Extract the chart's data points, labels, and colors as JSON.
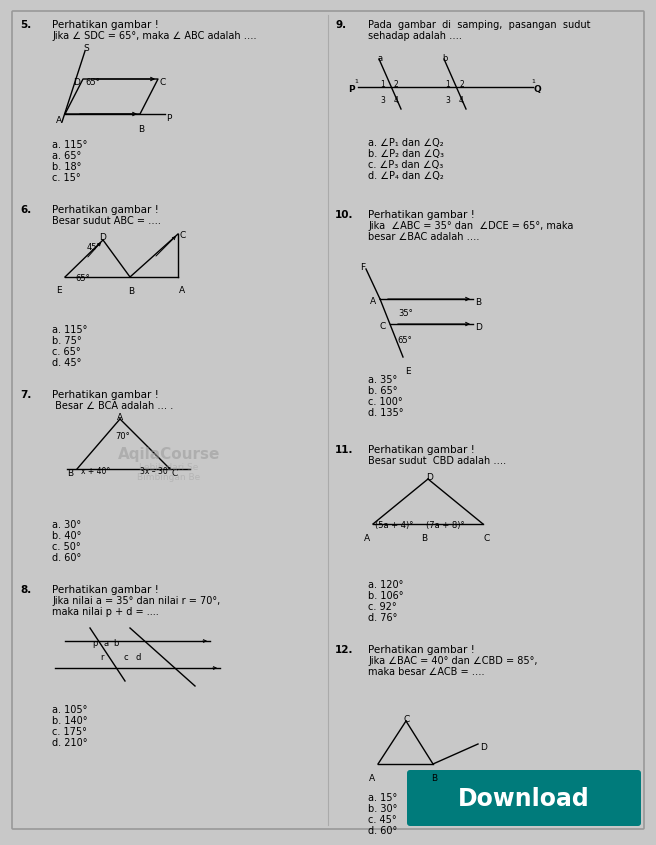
{
  "bg_color": "#c8c8c8",
  "q5_title": "Perhatikan gambar !",
  "q5_body": "Jika ∠ SDC = 65°, maka ∠ ABC adalah ….",
  "q5_ans": [
    "a. 115°",
    "a. 65°",
    "b. 18°",
    "c. 15°"
  ],
  "q6_title": "Perhatikan gambar !",
  "q6_body": "Besar sudut ABC = ….",
  "q6_ans": [
    "a. 115°",
    "b. 75°",
    "c. 65°",
    "d. 45°"
  ],
  "q7_title": "Perhatikan gambar !",
  "q7_body": " Besar ∠ BCA adalah … .",
  "q7_ans": [
    "a. 30°",
    "b. 40°",
    "c. 50°",
    "d. 60°"
  ],
  "q8_title": "Perhatikan gambar !",
  "q8_body1": "Jika nilai a = 35° dan nilai r = 70°,",
  "q8_body2": "maka nilai p + d = ....",
  "q8_ans": [
    "a. 105°",
    "b. 140°",
    "c. 175°",
    "d. 210°"
  ],
  "q9_title1": "Pada  gambar  di  samping,  pasangan  sudut",
  "q9_title2": "sehadap adalah ….",
  "q9_ans": [
    "a. ∠P₁ dan ∠Q₂",
    "b. ∠P₂ dan ∠Q₃",
    "c. ∠P₃ dan ∠Q₃",
    "d. ∠P₄ dan ∠Q₂"
  ],
  "q10_title": "Perhatikan gambar !",
  "q10_body1": "Jika  ∠ABC = 35° dan  ∠DCE = 65°, maka",
  "q10_body2": "besar ∠BAC adalah ….",
  "q10_ans": [
    "a. 35°",
    "b. 65°",
    "c. 100°",
    "d. 135°"
  ],
  "q11_title": "Perhatikan gambar !",
  "q11_body": "Besar sudut  CBD adalah ….",
  "q11_ans": [
    "a. 120°",
    "b. 106°",
    "c. 92°",
    "d. 76°"
  ],
  "q12_title": "Perhatikan gambar !",
  "q12_body1": "Jika ∠BAC = 40° dan ∠CBD = 85°,",
  "q12_body2": "maka besar ∠ACB = ….",
  "q12_ans": [
    "a. 15°",
    "b. 30°",
    "c. 45°",
    "d. 60°"
  ],
  "download_text": "Download",
  "download_color": "#007b7b"
}
